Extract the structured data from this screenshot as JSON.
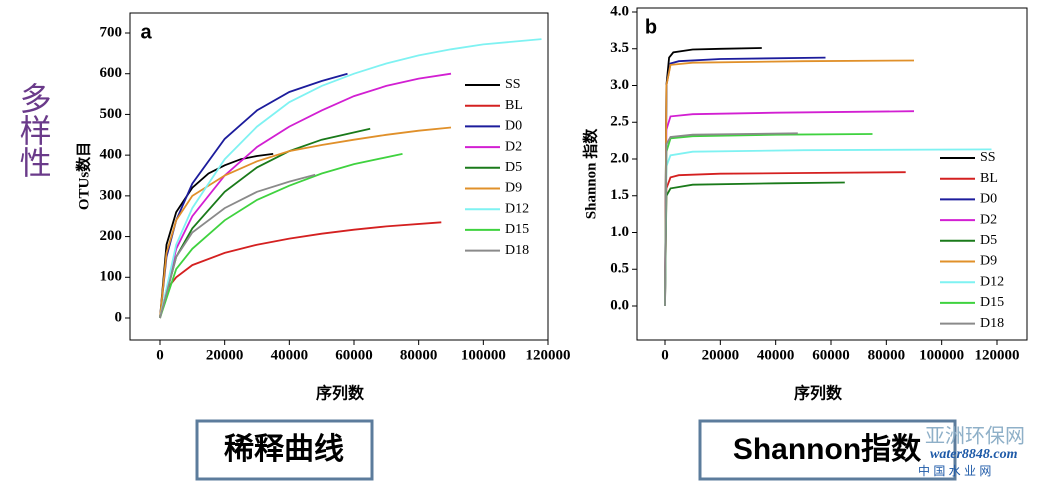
{
  "side_label": "多样性",
  "watermark": {
    "line1": "亚洲环保网",
    "line2": "water8848.com",
    "line3": "中 国 水 业 网"
  },
  "chart_data": [
    {
      "type": "line",
      "panel": "a",
      "caption": "稀释曲线",
      "xlabel": "序列数",
      "ylabel": "OTUs数目",
      "xlim": [
        0,
        120000
      ],
      "xticks": [
        0,
        20000,
        40000,
        60000,
        80000,
        100000,
        120000
      ],
      "ylim": [
        0,
        700
      ],
      "yticks": [
        0,
        100,
        200,
        300,
        400,
        500,
        600,
        700
      ],
      "legend": "right",
      "series": [
        {
          "name": "SS",
          "color": "#000000",
          "x": [
            0,
            2000,
            5000,
            10000,
            15000,
            20000,
            25000,
            30000,
            35000
          ],
          "values": [
            0,
            180,
            260,
            320,
            355,
            375,
            390,
            398,
            403
          ]
        },
        {
          "name": "BL",
          "color": "#d42020",
          "x": [
            0,
            2000,
            5000,
            10000,
            20000,
            30000,
            40000,
            50000,
            60000,
            70000,
            87000
          ],
          "values": [
            0,
            70,
            100,
            130,
            160,
            180,
            195,
            207,
            217,
            225,
            235
          ]
        },
        {
          "name": "D0",
          "color": "#1c1c9c",
          "x": [
            0,
            2000,
            5000,
            10000,
            20000,
            30000,
            40000,
            50000,
            58000
          ],
          "values": [
            0,
            150,
            240,
            330,
            440,
            510,
            555,
            582,
            600
          ]
        },
        {
          "name": "D2",
          "color": "#d21fd2",
          "x": [
            0,
            5000,
            10000,
            20000,
            30000,
            40000,
            50000,
            60000,
            70000,
            80000,
            90000
          ],
          "values": [
            0,
            170,
            250,
            350,
            420,
            470,
            510,
            545,
            570,
            588,
            600
          ]
        },
        {
          "name": "D5",
          "color": "#1a7a1a",
          "x": [
            0,
            5000,
            10000,
            20000,
            30000,
            40000,
            50000,
            65000
          ],
          "values": [
            0,
            150,
            220,
            310,
            370,
            410,
            438,
            465
          ]
        },
        {
          "name": "D9",
          "color": "#e0902a",
          "x": [
            0,
            2000,
            5000,
            10000,
            20000,
            30000,
            40000,
            50000,
            60000,
            70000,
            80000,
            90000
          ],
          "values": [
            0,
            160,
            240,
            300,
            350,
            385,
            410,
            425,
            438,
            450,
            460,
            468
          ]
        },
        {
          "name": "D12",
          "color": "#7ff2f2",
          "x": [
            0,
            5000,
            10000,
            20000,
            30000,
            40000,
            50000,
            60000,
            70000,
            80000,
            90000,
            100000,
            118000
          ],
          "values": [
            0,
            180,
            270,
            390,
            470,
            530,
            570,
            600,
            625,
            645,
            660,
            672,
            685
          ]
        },
        {
          "name": "D15",
          "color": "#3fd23f",
          "x": [
            0,
            5000,
            10000,
            20000,
            30000,
            40000,
            50000,
            60000,
            75000
          ],
          "values": [
            0,
            120,
            170,
            240,
            290,
            325,
            355,
            378,
            403
          ]
        },
        {
          "name": "D18",
          "color": "#8a8a8a",
          "x": [
            0,
            5000,
            10000,
            20000,
            30000,
            40000,
            48000
          ],
          "values": [
            0,
            150,
            210,
            270,
            310,
            335,
            352
          ]
        }
      ]
    },
    {
      "type": "line",
      "panel": "b",
      "caption": "Shannon指数",
      "xlabel": "序列数",
      "ylabel": "Shannon 指数",
      "xlim": [
        0,
        120000
      ],
      "xticks": [
        0,
        20000,
        40000,
        60000,
        80000,
        100000,
        120000
      ],
      "ylim": [
        0,
        4
      ],
      "yticks": [
        {
          "value": 0,
          "label": "0.0"
        },
        {
          "value": 0.5,
          "label": "0.5"
        },
        {
          "value": 1,
          "label": "1.0"
        },
        {
          "value": 1.5,
          "label": "1.5"
        },
        {
          "value": 2,
          "label": "2.0"
        },
        {
          "value": 2.5,
          "label": "2.5"
        },
        {
          "value": 3,
          "label": "3.0"
        },
        {
          "value": 3.5,
          "label": "3.5"
        },
        {
          "value": 4,
          "label": "4.0"
        }
      ],
      "legend": "lower right",
      "series": [
        {
          "name": "SS",
          "color": "#000000",
          "x": [
            0,
            500,
            1500,
            3000,
            10000,
            20000,
            35000
          ],
          "values": [
            0,
            3.0,
            3.38,
            3.45,
            3.49,
            3.5,
            3.51
          ]
        },
        {
          "name": "BL",
          "color": "#d42020",
          "x": [
            0,
            500,
            2000,
            5000,
            20000,
            50000,
            87000
          ],
          "values": [
            0,
            1.6,
            1.75,
            1.78,
            1.8,
            1.81,
            1.82
          ]
        },
        {
          "name": "D0",
          "color": "#1c1c9c",
          "x": [
            0,
            500,
            2000,
            5000,
            20000,
            58000
          ],
          "values": [
            0,
            3.0,
            3.3,
            3.33,
            3.36,
            3.38
          ]
        },
        {
          "name": "D2",
          "color": "#d21fd2",
          "x": [
            0,
            500,
            2000,
            10000,
            40000,
            90000
          ],
          "values": [
            0,
            2.4,
            2.58,
            2.61,
            2.63,
            2.65
          ]
        },
        {
          "name": "D5",
          "color": "#1a7a1a",
          "x": [
            0,
            500,
            2000,
            10000,
            40000,
            65000
          ],
          "values": [
            0,
            1.5,
            1.6,
            1.65,
            1.67,
            1.68
          ]
        },
        {
          "name": "D9",
          "color": "#e0902a",
          "x": [
            0,
            500,
            2000,
            10000,
            50000,
            90000
          ],
          "values": [
            0,
            3.0,
            3.28,
            3.31,
            3.33,
            3.34
          ]
        },
        {
          "name": "D12",
          "color": "#7ff2f2",
          "x": [
            0,
            500,
            2000,
            10000,
            50000,
            118000
          ],
          "values": [
            0,
            1.9,
            2.05,
            2.1,
            2.12,
            2.13
          ]
        },
        {
          "name": "D15",
          "color": "#3fd23f",
          "x": [
            0,
            500,
            2000,
            10000,
            40000,
            75000
          ],
          "values": [
            0,
            2.1,
            2.28,
            2.31,
            2.33,
            2.34
          ]
        },
        {
          "name": "D18",
          "color": "#8a8a8a",
          "x": [
            0,
            500,
            2000,
            10000,
            48000
          ],
          "values": [
            0,
            2.2,
            2.3,
            2.33,
            2.35
          ]
        }
      ]
    }
  ]
}
